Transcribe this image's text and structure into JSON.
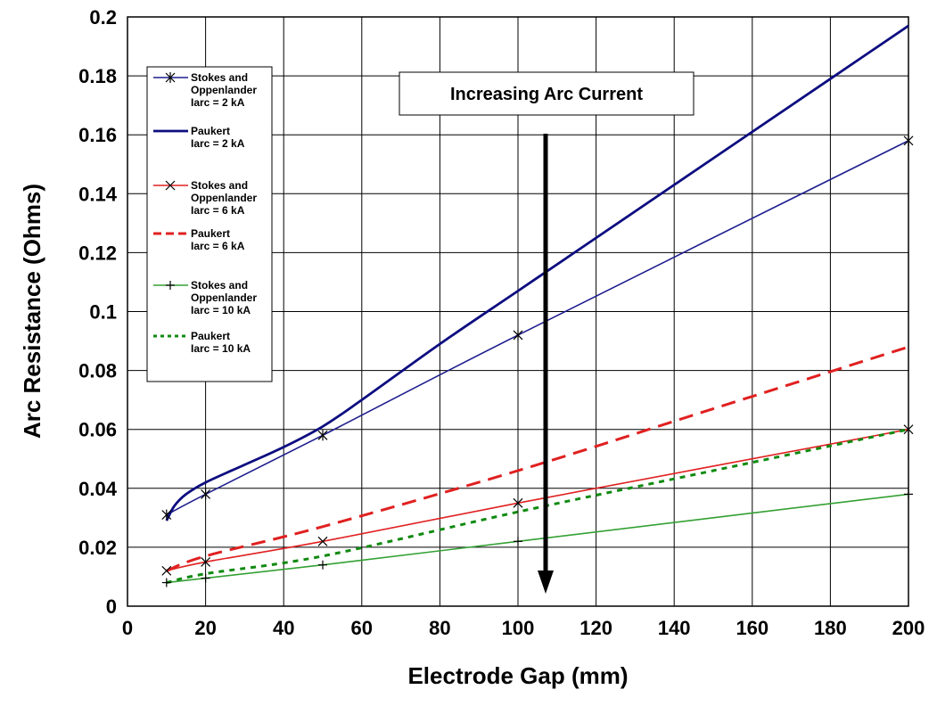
{
  "chart_data": {
    "type": "line",
    "xlabel": "Electrode Gap (mm)",
    "ylabel": "Arc Resistance (Ohms)",
    "xlim": [
      0,
      200
    ],
    "ylim": [
      0,
      0.2
    ],
    "x_ticks": [
      "0",
      "20",
      "40",
      "60",
      "80",
      "100",
      "120",
      "140",
      "160",
      "180",
      "200"
    ],
    "y_ticks": [
      "0",
      "0.02",
      "0.04",
      "0.06",
      "0.08",
      "0.1",
      "0.12",
      "0.14",
      "0.16",
      "0.18",
      "0.2"
    ],
    "grid": true,
    "legend_position": "top-left",
    "annotation": "Increasing Arc Current",
    "series": [
      {
        "name": [
          "Stokes and",
          "Oppenlander",
          "Iarc = 2 kA"
        ],
        "color": "#1f1f8f",
        "style": "solid",
        "marker": "asterisk",
        "x": [
          10,
          20,
          50,
          100,
          200
        ],
        "y": [
          0.031,
          0.038,
          0.058,
          0.092,
          0.158
        ]
      },
      {
        "name": [
          "Paukert",
          "Iarc = 2 kA"
        ],
        "color": "#0d0d80",
        "style": "solid-thick",
        "marker": "none",
        "x": [
          10,
          12,
          15,
          20,
          30,
          40,
          50,
          60,
          80,
          100,
          120,
          140,
          160,
          180,
          200
        ],
        "y": [
          0.029,
          0.034,
          0.038,
          0.042,
          0.048,
          0.054,
          0.061,
          0.07,
          0.089,
          0.107,
          0.125,
          0.143,
          0.161,
          0.179,
          0.197
        ]
      },
      {
        "name": [
          "Stokes and",
          "Oppenlander",
          "Iarc = 6 kA"
        ],
        "color": "#e02020",
        "style": "solid",
        "marker": "x",
        "x": [
          10,
          20,
          50,
          100,
          200
        ],
        "y": [
          0.012,
          0.015,
          0.022,
          0.035,
          0.06
        ]
      },
      {
        "name": [
          "Paukert",
          "Iarc = 6 kA"
        ],
        "color": "#e02020",
        "style": "dashed",
        "marker": "none",
        "x": [
          10,
          20,
          50,
          100,
          150,
          200
        ],
        "y": [
          0.012,
          0.017,
          0.027,
          0.046,
          0.067,
          0.088
        ]
      },
      {
        "name": [
          "Stokes and",
          "Oppenlander",
          "Iarc = 10 kA"
        ],
        "color": "#33a033",
        "style": "solid",
        "marker": "plus",
        "x": [
          10,
          20,
          50,
          100,
          200
        ],
        "y": [
          0.008,
          0.0095,
          0.014,
          0.022,
          0.038
        ]
      },
      {
        "name": [
          "Paukert",
          "Iarc = 10 kA"
        ],
        "color": "#108a10",
        "style": "dotted",
        "marker": "none",
        "x": [
          10,
          20,
          50,
          100,
          150,
          200
        ],
        "y": [
          0.008,
          0.011,
          0.017,
          0.032,
          0.046,
          0.06
        ]
      }
    ]
  }
}
